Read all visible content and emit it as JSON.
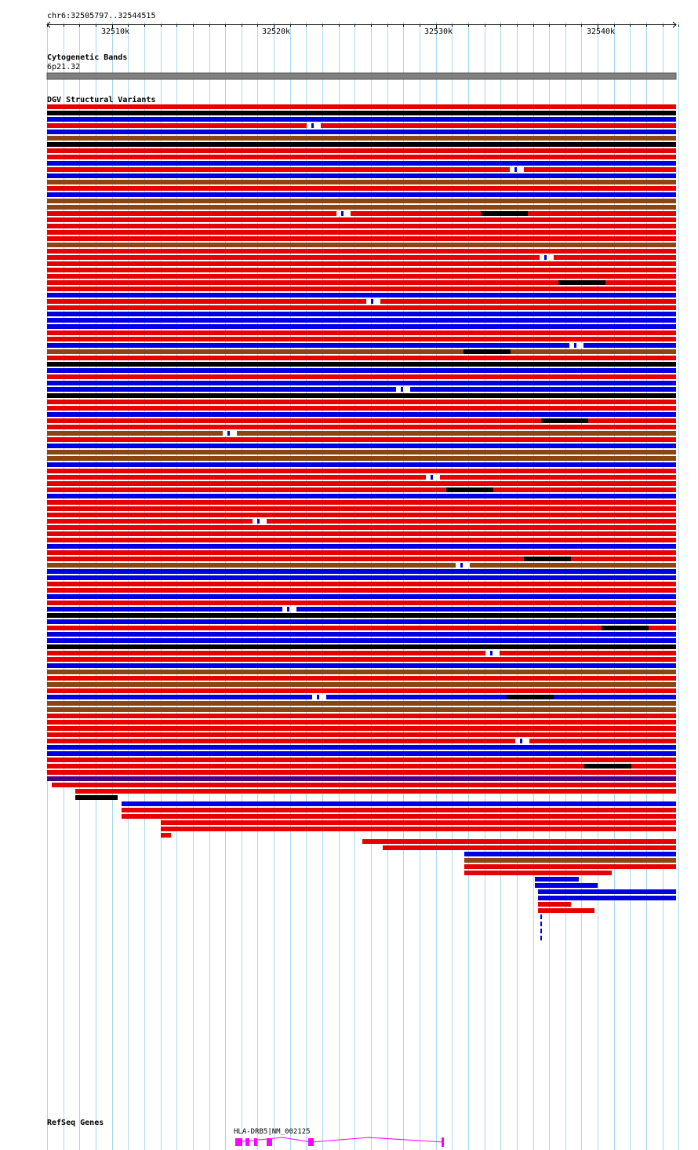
{
  "region": {
    "label": "chr6:32505797..32544515"
  },
  "ruler": {
    "ticks": [
      {
        "label": "32510k",
        "x": 32510000
      },
      {
        "label": "32520k",
        "x": 32520000
      },
      {
        "label": "32530k",
        "x": 32530000
      },
      {
        "label": "32540k",
        "x": 32540000
      }
    ]
  },
  "tracks": {
    "cytoband": {
      "title": "Cytogenetic Bands",
      "band": "6p21.32"
    },
    "dgv": {
      "title": "DGV Structural Variants"
    },
    "refseq": {
      "title": "RefSeq Genes",
      "gene_label": "HLA-DRB5|NM_002125"
    }
  },
  "colors": {
    "loss": "#e60000",
    "gain": "#0000e0",
    "complex": "#000000",
    "inversion": "#8b4513",
    "other": "#4b0082",
    "gene": "#ff00ff",
    "cytoband": "#808080",
    "grid": "#a8d8f0"
  }
}
